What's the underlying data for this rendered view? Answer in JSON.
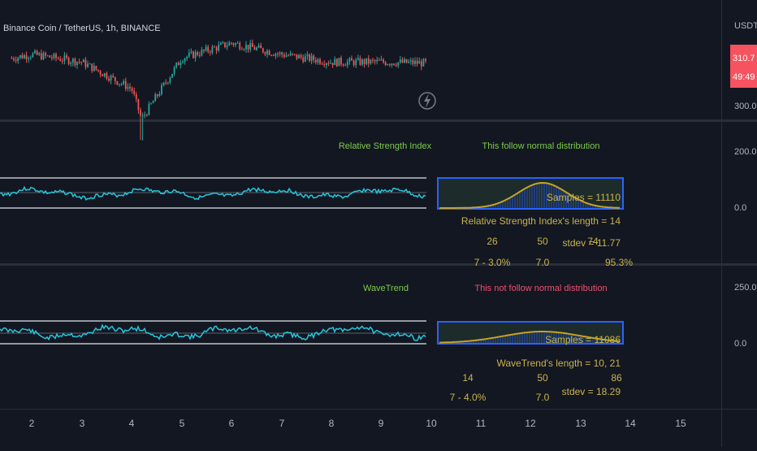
{
  "app": {
    "symbol_title": "Binance Coin / TetherUS, 1h, BINANCE",
    "currency": "USDT",
    "price_badge": "310.7",
    "countdown_badge": "49:49",
    "replay_icon": "lightning-bolt-icon",
    "colors": {
      "background": "#131722",
      "up": "#26a69a",
      "down": "#ef5350",
      "indicator_line": "#26c6da",
      "band_line": "#b2b5be",
      "histogram_border": "#2962ff",
      "curve": "#c9a227",
      "label_green": "#7ccb4a",
      "label_red": "#f0506e",
      "gold_text": "#c9b44a"
    }
  },
  "price_axis": {
    "pane1": [
      "300.0"
    ],
    "pane2": [
      "200.0",
      "0.0"
    ],
    "pane3": [
      "250.0",
      "0.0"
    ]
  },
  "time_axis": [
    "2",
    "3",
    "4",
    "5",
    "6",
    "7",
    "8",
    "9",
    "10",
    "11",
    "12",
    "13",
    "14",
    "15"
  ],
  "panes": {
    "rsi": {
      "indicator_name": "Relative Strength Index",
      "distribution_verdict": "This follow normal distribution",
      "samples": "Samples = 11110",
      "length": "Relative Strength Index's length = 14",
      "stdev": "stdev = 11.77",
      "tick_low": "26",
      "tick_mid": "50",
      "tick_high": "74",
      "row_a": "7 - 3.0%",
      "row_b": "7.0",
      "row_c": "95.3%"
    },
    "wt": {
      "indicator_name": "WaveTrend",
      "distribution_verdict": "This not follow normal distribution",
      "samples": "Samples = 11086",
      "length": "WaveTrend's length = 10, 21",
      "stdev": "stdev = 18.29",
      "tick_low": "14",
      "tick_mid": "50",
      "tick_high": "86",
      "row_a": "7 - 4.0%",
      "row_b": "7.0"
    }
  },
  "chart_data": [
    {
      "type": "candlestick",
      "title": "Binance Coin / TetherUS, 1h, BINANCE",
      "y_unit": "USDT",
      "y_tick_labels": [
        "300.0"
      ],
      "last_price": 310.7,
      "x_tick_labels": [
        "2",
        "3",
        "4",
        "5",
        "6",
        "7",
        "8",
        "9",
        "10"
      ],
      "approx_close_by_day": {
        "x": [
          1.6,
          2,
          3,
          4,
          4.2,
          5,
          6,
          7,
          8,
          9,
          9.9
        ],
        "y": [
          312,
          313,
          311,
          304,
          296,
          312,
          316,
          313,
          311,
          311,
          310.7
        ]
      }
    },
    {
      "type": "line",
      "title": "Relative Strength Index",
      "y_tick_labels": [
        "200.0",
        "0.0"
      ],
      "annotation": "This follow normal distribution",
      "samples": 11110,
      "length": 14,
      "stdev": 11.77,
      "x_ticks": [
        26,
        50,
        74
      ]
    },
    {
      "type": "line",
      "title": "WaveTrend",
      "y_tick_labels": [
        "250.0",
        "0.0"
      ],
      "annotation": "This not follow normal distribution",
      "samples": 11086,
      "length": "10, 21",
      "stdev": 18.29,
      "x_ticks": [
        14,
        50,
        86
      ]
    }
  ]
}
